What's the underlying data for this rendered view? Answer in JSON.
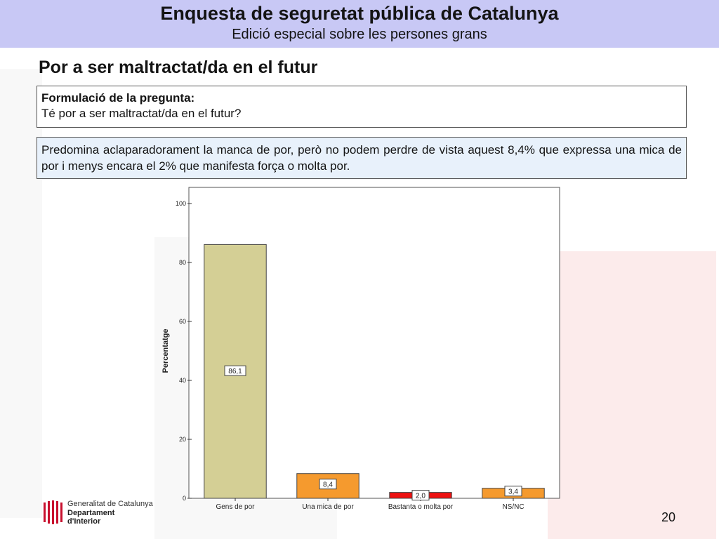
{
  "header": {
    "title": "Enquesta de seguretat pública de Catalunya",
    "subtitle": "Edició especial sobre les persones grans"
  },
  "slide": {
    "title": "Por a ser maltractat/da en el futur",
    "question_label": "Formulació de la pregunta:",
    "question_text": "Té por a ser maltractat/da en el futur?",
    "summary": "Predomina aclaparadorament la manca de por, però no podem perdre de vista aquest 8,4% que expressa una mica de por i menys encara el 2% que manifesta força o molta por.",
    "page_number": "20"
  },
  "logo": {
    "line1": "Generalitat de Catalunya",
    "line2": "Departament",
    "line3": "d'Interior",
    "color": "#c8102e"
  },
  "colors": {
    "header_bg": "#c8c8f5",
    "summary_bg": "#e8f1fb"
  },
  "chart_data": {
    "type": "bar",
    "categories": [
      "Gens de por",
      "Una mica de por",
      "Bastanta o molta por",
      "NS/NC"
    ],
    "values": [
      86.1,
      8.4,
      2.0,
      3.4
    ],
    "value_labels": [
      "86,1",
      "8,4",
      "2,0",
      "3,4"
    ],
    "bar_colors": [
      "#d4cf95",
      "#f59a2e",
      "#ee1111",
      "#f59a2e"
    ],
    "ylabel": "Percentatge",
    "xlabel": "",
    "ylim": [
      0,
      100
    ],
    "yticks": [
      "0",
      "20",
      "40",
      "60",
      "80",
      "100"
    ],
    "grid": false,
    "legend": "none"
  }
}
